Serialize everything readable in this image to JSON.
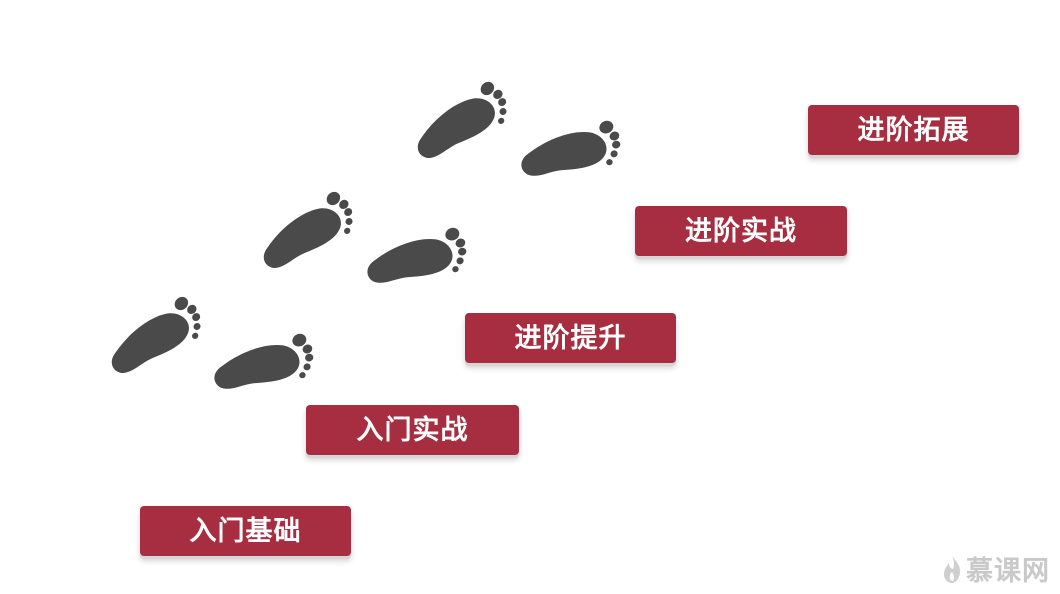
{
  "steps": [
    {
      "label": "入门基础"
    },
    {
      "label": "入门实战"
    },
    {
      "label": "进阶提升"
    },
    {
      "label": "进阶实战"
    },
    {
      "label": "进阶拓展"
    }
  ],
  "watermark": {
    "text": "慕课网",
    "icon": "flame-logo-icon"
  },
  "colors": {
    "step_fill": "#a72e40",
    "footprint": "#4a4a4a",
    "watermark": "#c9c9c9"
  }
}
